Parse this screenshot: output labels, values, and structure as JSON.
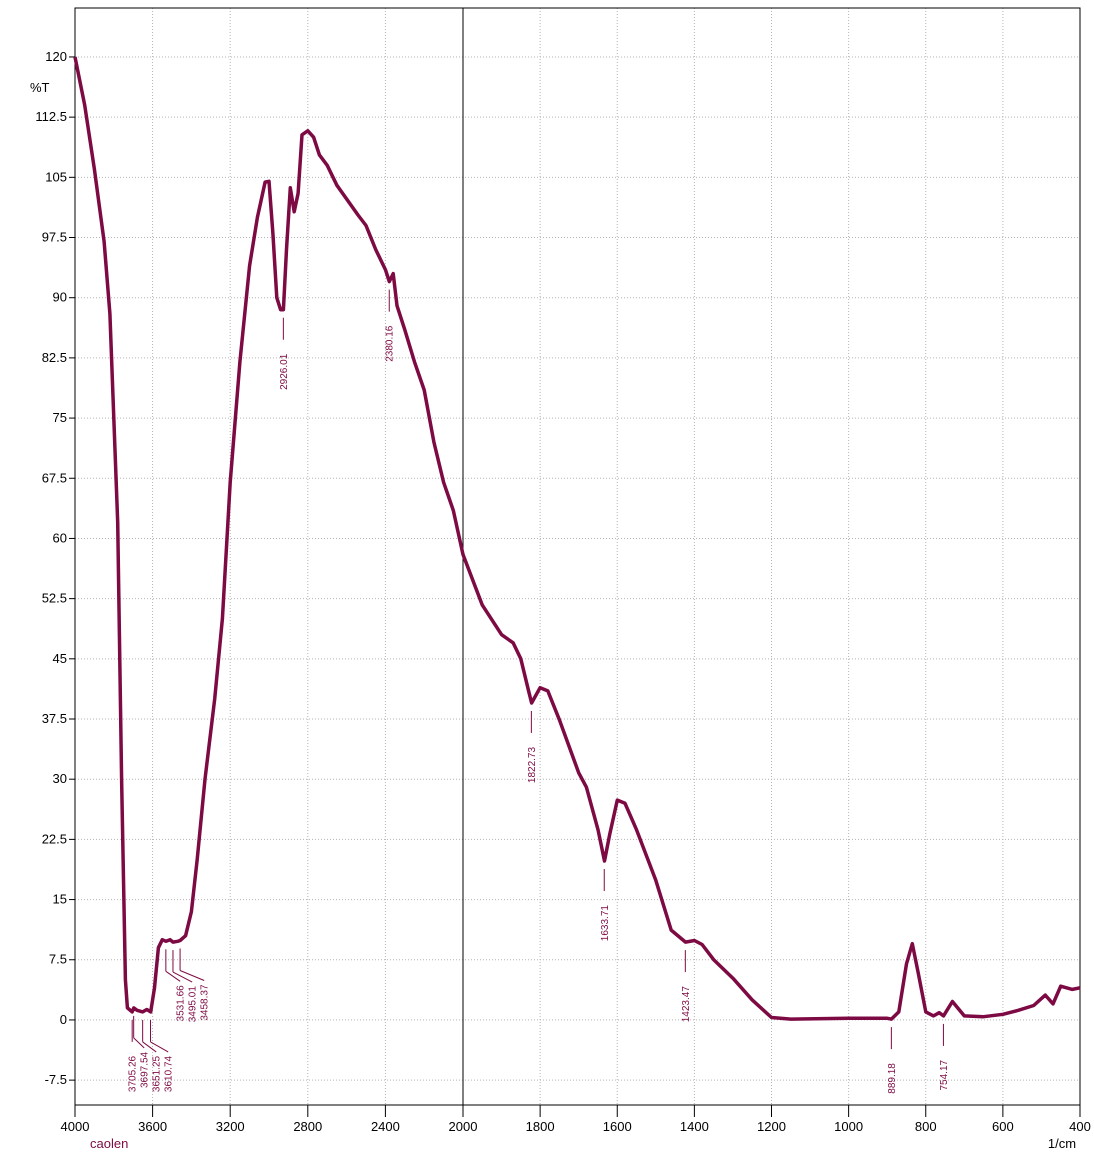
{
  "chart_data": {
    "type": "line",
    "y_label": "%T",
    "x_label": "1/cm",
    "sample": "caolen",
    "color": "#7d0a43",
    "grid": true,
    "x_break": 2000,
    "xlim": [
      4000,
      400
    ],
    "ylim": [
      -10.6,
      126.1
    ],
    "xticks": [
      4000,
      3600,
      3200,
      2800,
      2400,
      2000,
      1800,
      1600,
      1400,
      1200,
      1000,
      800,
      600,
      400
    ],
    "yticks": [
      120,
      112.5,
      105,
      97.5,
      90,
      82.5,
      75,
      67.5,
      60,
      52.5,
      45,
      37.5,
      30,
      22.5,
      15,
      7.5,
      0,
      -7.5
    ],
    "series": [
      {
        "name": "caolen",
        "x": [
          4000,
          3950,
          3900,
          3850,
          3820,
          3780,
          3760,
          3740,
          3730,
          3705,
          3697,
          3680,
          3651,
          3630,
          3610,
          3590,
          3570,
          3550,
          3531,
          3510,
          3495,
          3470,
          3458,
          3430,
          3400,
          3370,
          3330,
          3280,
          3240,
          3200,
          3150,
          3100,
          3060,
          3020,
          3000,
          2980,
          2960,
          2940,
          2926,
          2910,
          2890,
          2870,
          2850,
          2830,
          2800,
          2770,
          2740,
          2700,
          2650,
          2541,
          2500,
          2450,
          2400,
          2380,
          2360,
          2340,
          2300,
          2250,
          2200,
          2150,
          2100,
          2050,
          2000,
          1950,
          1900,
          1870,
          1850,
          1830,
          1822,
          1800,
          1780,
          1750,
          1700,
          1680,
          1650,
          1633,
          1620,
          1600,
          1580,
          1550,
          1500,
          1460,
          1423,
          1400,
          1380,
          1350,
          1300,
          1250,
          1200,
          1150,
          1000,
          900,
          889,
          870,
          850,
          835,
          820,
          800,
          780,
          765,
          754,
          731,
          700,
          650,
          600,
          560,
          520,
          490,
          470,
          450,
          420,
          400
        ],
        "values": [
          120,
          114,
          106,
          97,
          88,
          62,
          30,
          5,
          1.5,
          1,
          1.5,
          1.2,
          1,
          1.3,
          1,
          4,
          9,
          10,
          9.8,
          10,
          9.7,
          9.8,
          9.9,
          10.5,
          13.5,
          20,
          30,
          40,
          50,
          67,
          82,
          94,
          100,
          104.4,
          104.5,
          98,
          90,
          88.5,
          88.5,
          96,
          103.7,
          100.7,
          103,
          110.3,
          110.8,
          110,
          107.8,
          106.5,
          104,
          100.3,
          99,
          96,
          93.5,
          92,
          93,
          89,
          86,
          82,
          78.5,
          72,
          67,
          63.5,
          58,
          51.7,
          48,
          47,
          45,
          41,
          39.5,
          41.4,
          41,
          37.4,
          30.8,
          29,
          23.7,
          19.8,
          23,
          27.4,
          27,
          23.7,
          17.4,
          11.2,
          9.7,
          9.9,
          9.4,
          7.5,
          5.2,
          2.5,
          0.3,
          0.1,
          0.2,
          0.2,
          0.1,
          1,
          7,
          9.5,
          6,
          1,
          0.5,
          0.9,
          0.5,
          2.3,
          0.5,
          0.4,
          0.7,
          1.2,
          1.8,
          3.1,
          2,
          4.2,
          3.8,
          4
        ]
      }
    ],
    "peaks": {
      "x": [
        3705.26,
        3697.54,
        3651.25,
        3610.74,
        3531.66,
        3495.01,
        3458.37,
        2926.01,
        2380.16,
        1822.73,
        1633.71,
        1423.47,
        889.18,
        754.17
      ],
      "y": [
        1,
        1.5,
        1,
        1,
        9.8,
        9.7,
        9.9,
        88.5,
        92,
        39.5,
        19.8,
        9.7,
        0.1,
        0.5
      ]
    }
  }
}
